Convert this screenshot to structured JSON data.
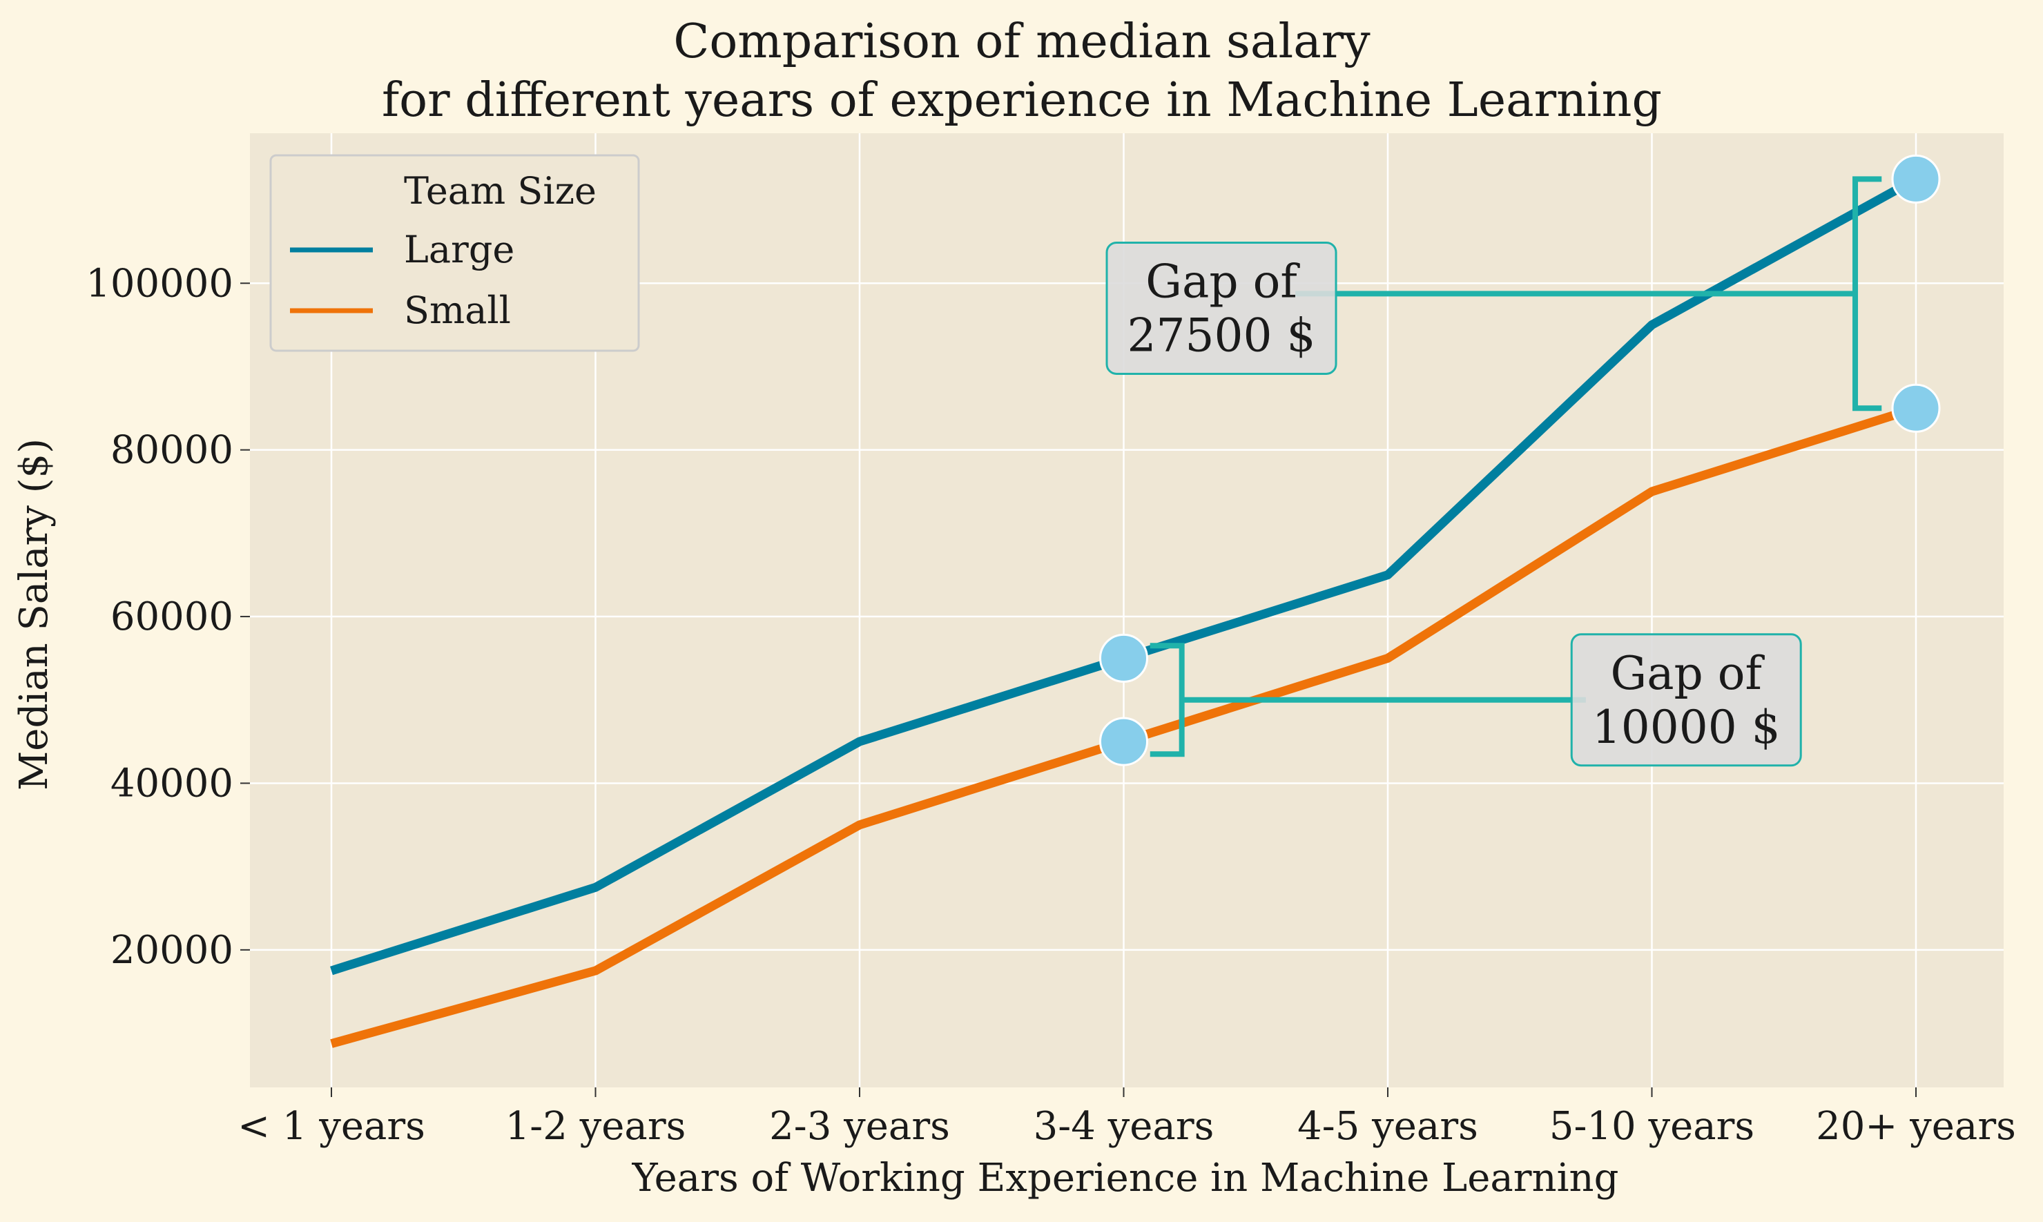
{
  "colors": {
    "figure_bg": "#fdf6e3",
    "axes_bg": "#efe7d5",
    "grid": "#ffffff",
    "large": "#007f9f",
    "small": "#ef7309",
    "marker": "#87ceeb",
    "bracket": "#20b2aa",
    "ann_box_fill": "#dcdcdc",
    "ann_box_stroke": "#20b2aa"
  },
  "chart_data": {
    "type": "line",
    "title_lines": [
      "Comparison of median salary",
      "for different years of experience in Machine Learning"
    ],
    "xlabel": "Years of Working Experience in Machine Learning",
    "ylabel": "Median Salary ($)",
    "categories": [
      "< 1 years",
      "1-2 years",
      "2-3 years",
      "3-4 years",
      "4-5 years",
      "5-10 years",
      "20+ years"
    ],
    "ylim": [
      3500,
      118000
    ],
    "yticks": [
      20000,
      40000,
      60000,
      80000,
      100000
    ],
    "grid": true,
    "legend": {
      "title": "Team Size",
      "position": "top-left"
    },
    "series": [
      {
        "name": "Large",
        "values": [
          17500,
          27500,
          45000,
          55000,
          65000,
          95000,
          112500
        ]
      },
      {
        "name": "Small",
        "values": [
          8750,
          17500,
          35000,
          45000,
          55000,
          75000,
          85000
        ]
      }
    ],
    "markers": [
      {
        "category_index": 3,
        "value": 55000
      },
      {
        "category_index": 3,
        "value": 45000
      },
      {
        "category_index": 6,
        "value": 112500
      },
      {
        "category_index": 6,
        "value": 85000
      }
    ],
    "annotations": [
      {
        "text_lines": [
          "Gap of",
          "27500 $"
        ],
        "bracket": {
          "x_index": 5.77,
          "y_top": 112500,
          "y_bottom": 85000,
          "arm_x_index": 5.77,
          "tip_x_index": 5.87
        },
        "connector": {
          "x_from_index": 3.65,
          "x_to_index": 5.77,
          "y": 98750
        },
        "box_center": {
          "x_index": 3.37,
          "y": 97000
        }
      },
      {
        "text_lines": [
          "Gap of",
          "10000 $"
        ],
        "bracket": {
          "x_index": 3.22,
          "y_top": 56500,
          "y_bottom": 43500,
          "arm_x_index": 3.22,
          "tip_x_index": 3.1
        },
        "connector": {
          "x_from_index": 3.22,
          "x_to_index": 4.75,
          "y": 50000
        },
        "box_center": {
          "x_index": 5.13,
          "y": 50000
        }
      }
    ]
  }
}
